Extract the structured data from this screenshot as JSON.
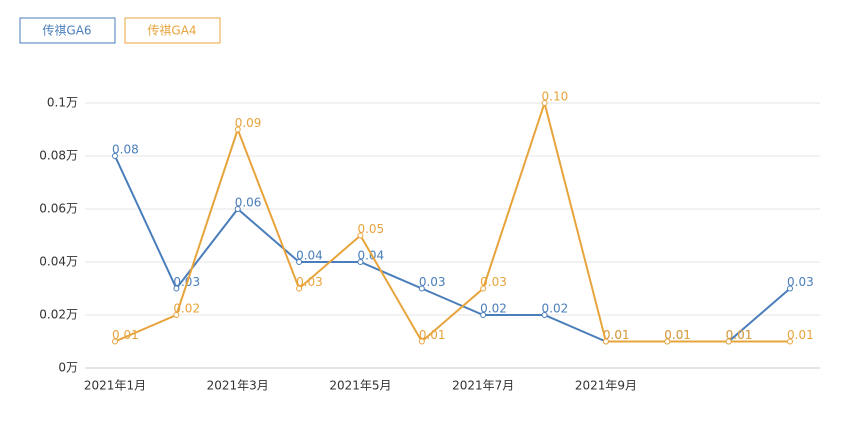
{
  "chart_data": {
    "type": "line",
    "categories": [
      "2021年1月",
      null,
      "2021年3月",
      null,
      "2021年5月",
      null,
      "2021年7月",
      null,
      "2021年9月",
      null,
      null,
      null
    ],
    "series": [
      {
        "name": "传祺GA6",
        "color": "#4a7ebb",
        "values": [
          0.08,
          0.03,
          0.06,
          0.04,
          0.04,
          0.03,
          0.02,
          0.02,
          0.01,
          0.01,
          0.01,
          0.03
        ]
      },
      {
        "name": "传祺GA4",
        "color": "#e8a43c",
        "values": [
          0.01,
          0.02,
          0.09,
          0.03,
          0.05,
          0.01,
          0.03,
          0.1,
          0.01,
          0.01,
          0.01,
          0.01
        ],
        "value_labels": [
          "0.01",
          "0.02",
          "0.09",
          "0.03",
          "0.05",
          "0.01",
          "0.03",
          "0.10",
          "0.01",
          "0.01",
          "0.01",
          "0.01"
        ]
      }
    ],
    "ylim": [
      0,
      0.1
    ],
    "yticks": [
      {
        "value": 0,
        "label": "0万"
      },
      {
        "value": 0.02,
        "label": "0.02万"
      },
      {
        "value": 0.04,
        "label": "0.04万"
      },
      {
        "value": 0.06,
        "label": "0.06万"
      },
      {
        "value": 0.08,
        "label": "0.08万"
      },
      {
        "value": 0.1,
        "label": "0.1万"
      }
    ],
    "grid": true
  }
}
